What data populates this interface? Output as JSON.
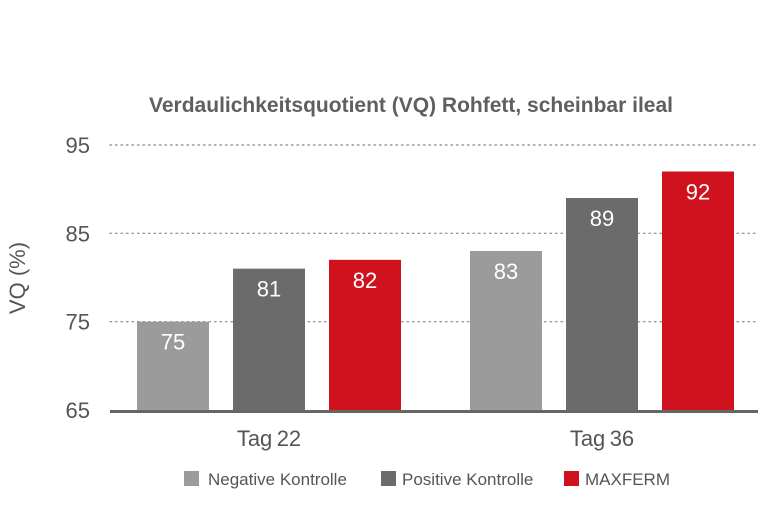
{
  "chart_data": {
    "type": "bar",
    "title": "Verdaulichkeitsquotient (VQ) Rohfett, scheinbar ileal",
    "xlabel": "",
    "ylabel": "VQ (%)",
    "ylim": [
      65,
      95
    ],
    "yticks": [
      65,
      75,
      85,
      95
    ],
    "grid": "dotted-horizontal",
    "legend_position": "bottom",
    "categories": [
      "Tag 22",
      "Tag 36"
    ],
    "series": [
      {
        "name": "Negative Kontrolle",
        "color": "#9b9b9b",
        "values": [
          75,
          83
        ],
        "labels": [
          "75",
          "83"
        ]
      },
      {
        "name": "Positive Kontrolle",
        "color": "#6b6b6b",
        "values": [
          81,
          89
        ],
        "labels": [
          "81",
          "89"
        ]
      },
      {
        "name": "MAXFERM",
        "color": "#d0121f",
        "values": [
          82,
          92
        ],
        "labels": [
          "82",
          "92"
        ]
      }
    ],
    "axis_color": "#666666",
    "grid_color": "#9a9a9a"
  }
}
